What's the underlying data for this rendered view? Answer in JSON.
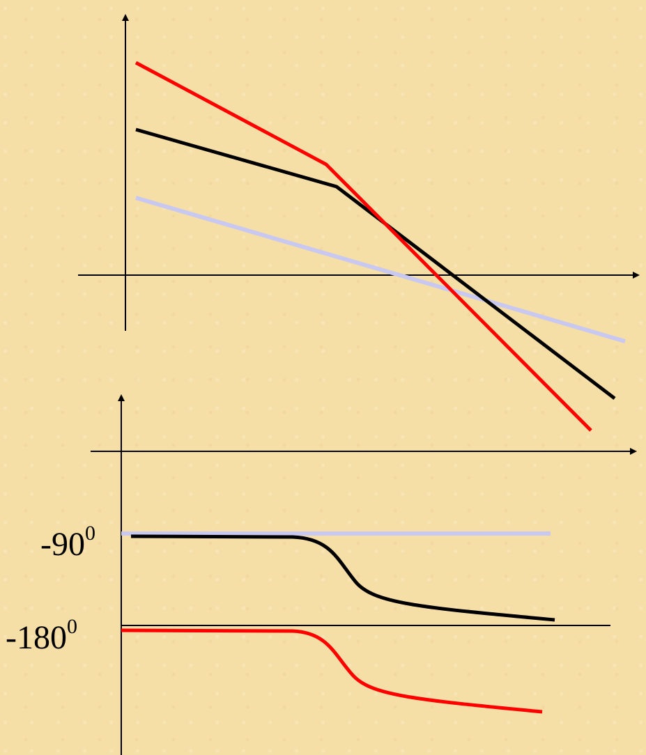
{
  "colors": {
    "background": "#f6dfa6",
    "axis": "#000000",
    "red": "#ff0000",
    "black": "#000000",
    "lavender": "#c8c8f0"
  },
  "phase_plot": {
    "label_minus90": "-90",
    "label_minus90_sup": "0",
    "label_minus180": "-180",
    "label_minus180_sup": "0"
  }
}
